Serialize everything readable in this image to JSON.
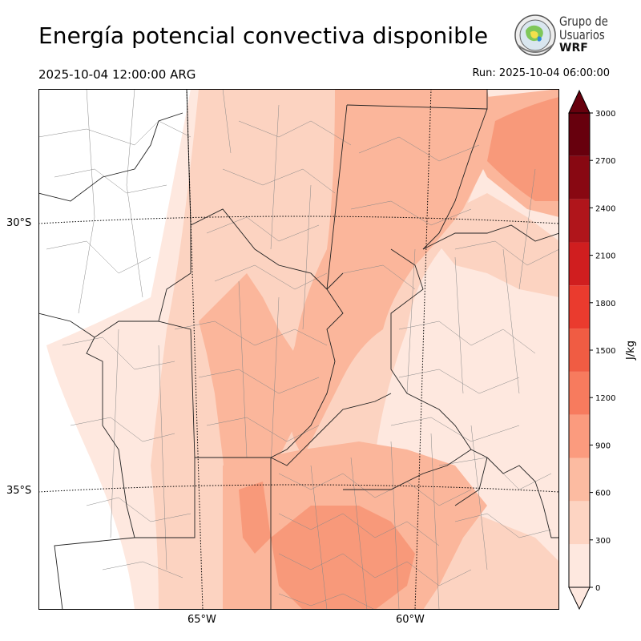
{
  "header": {
    "title": "Energía potencial convectiva disponible",
    "valid_time": "2025-10-04 12:00:00 ARG",
    "run_time": "Run: 2025-10-04 06:00:00"
  },
  "logo": {
    "line1": "Grupo de",
    "line2": "Usuarios",
    "line3": "WRF"
  },
  "map": {
    "latitude_labels": [
      "30°S",
      "35°S"
    ],
    "longitude_labels": [
      "65°W",
      "60°W"
    ],
    "colors": {
      "lightest": "#fee8df",
      "light": "#fcd3c1",
      "mid": "#fbb69b",
      "strong": "#f8997a",
      "border": "#222222",
      "department": "#888888"
    }
  },
  "colorbar": {
    "unit_label": "J/kg",
    "ticks": [
      "0",
      "300",
      "600",
      "900",
      "1200",
      "1500",
      "1800",
      "2100",
      "2400",
      "2700",
      "3000"
    ],
    "colors": [
      "#fee8df",
      "#fdd4c2",
      "#fcbba1",
      "#fb9b7e",
      "#f77b5e",
      "#f05c43",
      "#ea3b2e",
      "#d01e1f",
      "#b0151b",
      "#880812",
      "#67000d"
    ],
    "extend": "both"
  }
}
